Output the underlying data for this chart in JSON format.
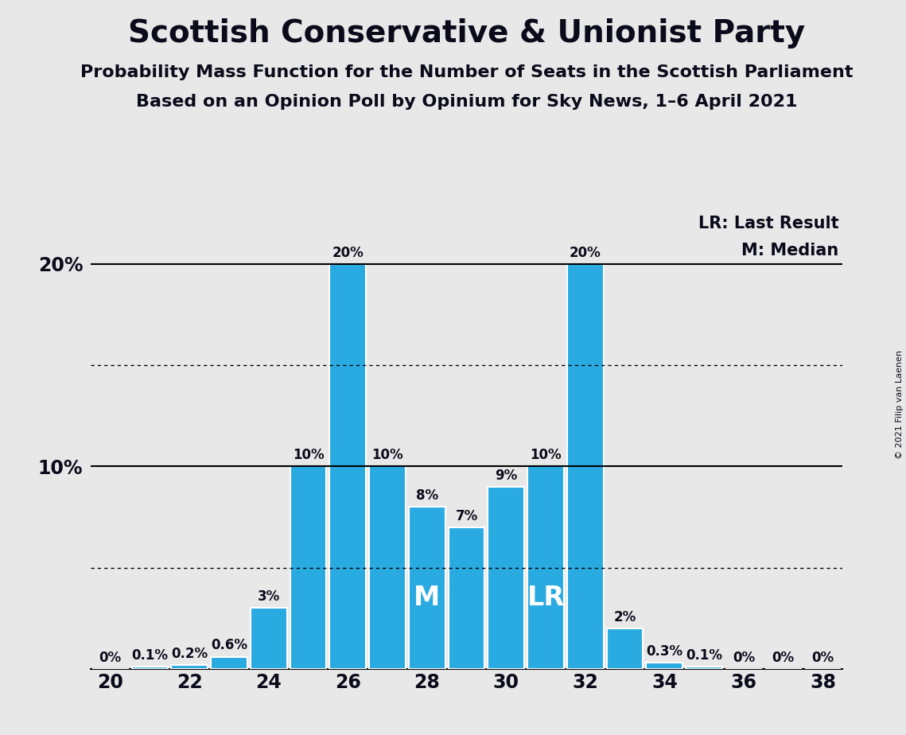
{
  "title": "Scottish Conservative & Unionist Party",
  "subtitle1": "Probability Mass Function for the Number of Seats in the Scottish Parliament",
  "subtitle2": "Based on an Opinion Poll by Opinium for Sky News, 1–6 April 2021",
  "copyright": "© 2021 Filip van Laenen",
  "seats": [
    20,
    21,
    22,
    23,
    24,
    25,
    26,
    27,
    28,
    29,
    30,
    31,
    32,
    33,
    34,
    35,
    36,
    37,
    38
  ],
  "probabilities": [
    0.0,
    0.1,
    0.2,
    0.6,
    3.0,
    10.0,
    20.0,
    10.0,
    8.0,
    7.0,
    9.0,
    10.0,
    20.0,
    2.0,
    0.3,
    0.1,
    0.0,
    0.0,
    0.0
  ],
  "bar_color": "#29ABE2",
  "background_color": "#E8E8E8",
  "text_color": "#0a0a1a",
  "median_seat": 28,
  "last_result_seat": 31,
  "ylim": [
    0,
    22.5
  ],
  "hlines_solid": [
    10,
    20
  ],
  "hlines_dotted": [
    5,
    15
  ],
  "legend_lr": "LR: Last Result",
  "legend_m": "M: Median",
  "xlabel_seats": [
    20,
    22,
    24,
    26,
    28,
    30,
    32,
    34,
    36,
    38
  ],
  "bar_width": 0.92,
  "label_fontsize": 12,
  "tick_fontsize": 17,
  "title_fontsize": 28,
  "subtitle_fontsize": 16,
  "legend_fontsize": 15,
  "inner_label_fontsize": 24
}
